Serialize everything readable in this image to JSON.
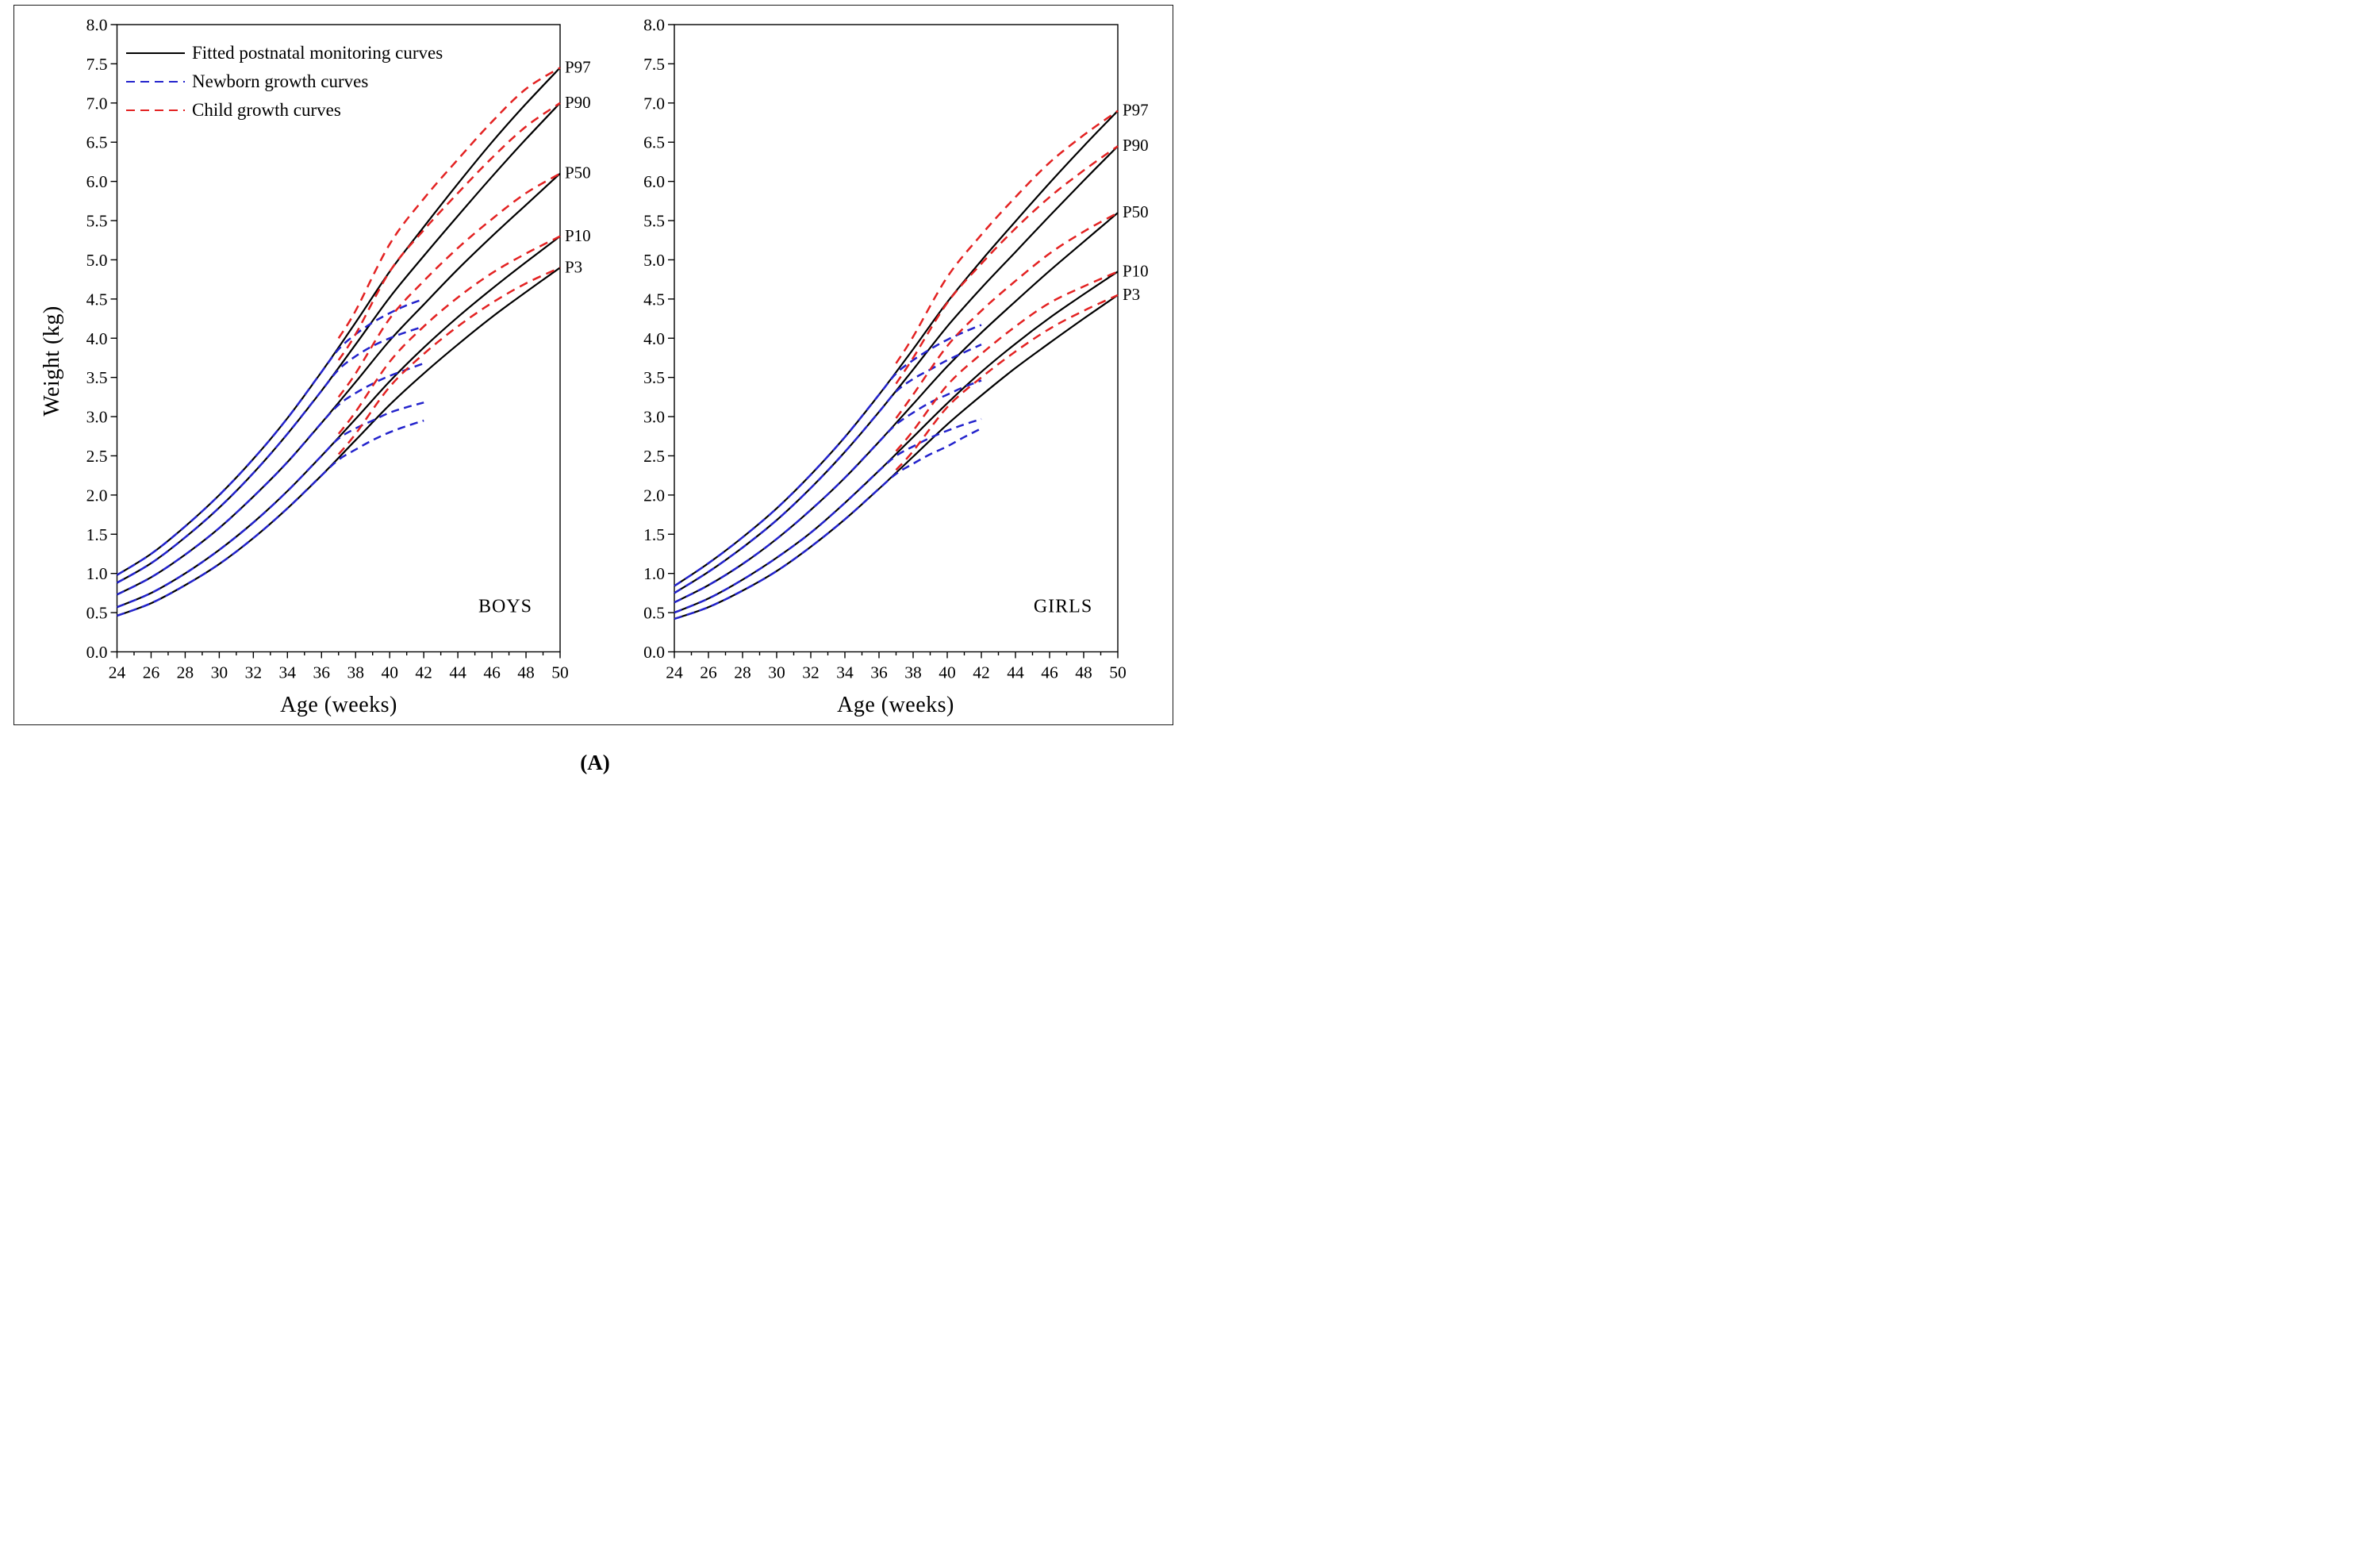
{
  "figure": {
    "caption": "(A)"
  },
  "legend": {
    "items": [
      {
        "label": "Fitted postnatal monitoring curves",
        "style": "solid",
        "color": "#000000"
      },
      {
        "label": "Newborn growth curves",
        "style": "dashed",
        "color": "#2323cc"
      },
      {
        "label": "Child growth curves",
        "style": "dashed",
        "color": "#e32222"
      }
    ]
  },
  "axes": {
    "x_label": "Age (weeks)",
    "y_label": "Weight (kg)",
    "x_range": [
      24,
      50
    ],
    "x_tick_step": 2,
    "x_minor_step": 1,
    "y_range": [
      0,
      8
    ],
    "y_tick_step": 0.5,
    "grid": "off",
    "legend_position": "top-left of first panel"
  },
  "chart_data": [
    {
      "type": "line",
      "title": "BOYS",
      "xlabel": "Age (weeks)",
      "ylabel": "Weight (kg)",
      "xlim": [
        24,
        50
      ],
      "ylim": [
        0,
        8
      ],
      "percentile_labels": [
        "P97",
        "P90",
        "P50",
        "P10",
        "P3"
      ],
      "series": [
        {
          "name": "Fitted postnatal monitoring curves",
          "color": "#000000",
          "style": "solid",
          "weeks": [
            24,
            26,
            28,
            30,
            32,
            34,
            36,
            38,
            40,
            42,
            44,
            46,
            48,
            50
          ],
          "P3": [
            0.46,
            0.62,
            0.85,
            1.12,
            1.45,
            1.83,
            2.25,
            2.7,
            3.15,
            3.55,
            3.92,
            4.27,
            4.59,
            4.9
          ],
          "P10": [
            0.57,
            0.75,
            1.0,
            1.3,
            1.65,
            2.05,
            2.5,
            2.97,
            3.45,
            3.88,
            4.27,
            4.63,
            4.97,
            5.3
          ],
          "P50": [
            0.73,
            0.95,
            1.24,
            1.58,
            1.98,
            2.42,
            2.92,
            3.44,
            3.97,
            4.43,
            4.88,
            5.3,
            5.7,
            6.1
          ],
          "P90": [
            0.88,
            1.13,
            1.46,
            1.84,
            2.28,
            2.78,
            3.33,
            3.92,
            4.52,
            5.05,
            5.56,
            6.06,
            6.54,
            7.0
          ],
          "P97": [
            0.98,
            1.25,
            1.6,
            2.0,
            2.46,
            2.98,
            3.57,
            4.2,
            4.85,
            5.42,
            5.97,
            6.5,
            6.99,
            7.45
          ]
        },
        {
          "name": "Newborn growth curves",
          "color": "#2323cc",
          "style": "dashed",
          "weeks": [
            24,
            26,
            28,
            30,
            32,
            34,
            36,
            37,
            38,
            39,
            40,
            41,
            42
          ],
          "P3": [
            0.46,
            0.62,
            0.85,
            1.12,
            1.45,
            1.83,
            2.25,
            2.45,
            2.58,
            2.7,
            2.8,
            2.88,
            2.95
          ],
          "P10": [
            0.57,
            0.75,
            1.0,
            1.3,
            1.65,
            2.05,
            2.5,
            2.72,
            2.85,
            2.95,
            3.05,
            3.12,
            3.18
          ],
          "P50": [
            0.73,
            0.95,
            1.24,
            1.58,
            1.98,
            2.42,
            2.92,
            3.15,
            3.3,
            3.42,
            3.52,
            3.6,
            3.68
          ],
          "P90": [
            0.88,
            1.13,
            1.46,
            1.84,
            2.28,
            2.78,
            3.33,
            3.6,
            3.77,
            3.9,
            4.0,
            4.08,
            4.15
          ],
          "P97": [
            0.98,
            1.25,
            1.6,
            2.0,
            2.46,
            2.98,
            3.57,
            3.86,
            4.05,
            4.2,
            4.32,
            4.42,
            4.5
          ]
        },
        {
          "name": "Child growth curves",
          "color": "#e32222",
          "style": "dashed",
          "weeks": [
            37,
            38,
            40,
            42,
            44,
            46,
            48,
            50
          ],
          "P3": [
            2.52,
            2.78,
            3.38,
            3.8,
            4.15,
            4.45,
            4.7,
            4.9
          ],
          "P10": [
            2.78,
            3.06,
            3.7,
            4.15,
            4.52,
            4.83,
            5.08,
            5.3
          ],
          "P50": [
            3.25,
            3.55,
            4.25,
            4.73,
            5.15,
            5.52,
            5.85,
            6.1
          ],
          "P90": [
            3.72,
            4.05,
            4.85,
            5.38,
            5.85,
            6.3,
            6.7,
            7.0
          ],
          "P97": [
            4.0,
            4.35,
            5.2,
            5.78,
            6.28,
            6.76,
            7.18,
            7.45
          ]
        }
      ]
    },
    {
      "type": "line",
      "title": "GIRLS",
      "xlabel": "Age (weeks)",
      "ylabel": "Weight (kg)",
      "xlim": [
        24,
        50
      ],
      "ylim": [
        0,
        8
      ],
      "percentile_labels": [
        "P97",
        "P90",
        "P50",
        "P10",
        "P3"
      ],
      "series": [
        {
          "name": "Fitted postnatal monitoring curves",
          "color": "#000000",
          "style": "solid",
          "weeks": [
            24,
            26,
            28,
            30,
            32,
            34,
            36,
            38,
            40,
            42,
            44,
            46,
            48,
            50
          ],
          "P3": [
            0.42,
            0.57,
            0.78,
            1.03,
            1.34,
            1.69,
            2.08,
            2.49,
            2.9,
            3.27,
            3.62,
            3.94,
            4.25,
            4.55
          ],
          "P10": [
            0.5,
            0.68,
            0.92,
            1.2,
            1.52,
            1.9,
            2.31,
            2.74,
            3.17,
            3.57,
            3.93,
            4.26,
            4.56,
            4.85
          ],
          "P50": [
            0.63,
            0.85,
            1.12,
            1.44,
            1.81,
            2.22,
            2.68,
            3.16,
            3.64,
            4.07,
            4.47,
            4.86,
            5.23,
            5.6
          ],
          "P90": [
            0.75,
            1.02,
            1.33,
            1.68,
            2.09,
            2.55,
            3.06,
            3.6,
            4.15,
            4.64,
            5.1,
            5.56,
            6.01,
            6.45
          ],
          "P97": [
            0.84,
            1.13,
            1.46,
            1.83,
            2.26,
            2.74,
            3.28,
            3.86,
            4.46,
            4.99,
            5.49,
            5.98,
            6.45,
            6.9
          ]
        },
        {
          "name": "Newborn growth curves",
          "color": "#2323cc",
          "style": "dashed",
          "weeks": [
            24,
            26,
            28,
            30,
            32,
            34,
            36,
            37,
            38,
            39,
            40,
            41,
            42
          ],
          "P3": [
            0.42,
            0.57,
            0.78,
            1.03,
            1.34,
            1.69,
            2.08,
            2.27,
            2.4,
            2.52,
            2.62,
            2.74,
            2.85
          ],
          "P10": [
            0.5,
            0.68,
            0.92,
            1.2,
            1.52,
            1.9,
            2.31,
            2.5,
            2.62,
            2.73,
            2.82,
            2.9,
            2.97
          ],
          "P50": [
            0.63,
            0.85,
            1.12,
            1.44,
            1.81,
            2.22,
            2.68,
            2.9,
            3.05,
            3.18,
            3.28,
            3.38,
            3.46
          ],
          "P90": [
            0.75,
            1.02,
            1.33,
            1.68,
            2.09,
            2.55,
            3.06,
            3.32,
            3.48,
            3.6,
            3.72,
            3.82,
            3.92
          ],
          "P97": [
            0.84,
            1.13,
            1.46,
            1.83,
            2.26,
            2.74,
            3.28,
            3.55,
            3.72,
            3.86,
            3.98,
            4.08,
            4.17
          ]
        },
        {
          "name": "Child growth curves",
          "color": "#e32222",
          "style": "dashed",
          "weeks": [
            37,
            38,
            40,
            42,
            44,
            46,
            48,
            50
          ],
          "P3": [
            2.32,
            2.56,
            3.12,
            3.5,
            3.83,
            4.12,
            4.35,
            4.55
          ],
          "P10": [
            2.56,
            2.82,
            3.4,
            3.8,
            4.15,
            4.45,
            4.66,
            4.85
          ],
          "P50": [
            2.98,
            3.28,
            3.9,
            4.35,
            4.73,
            5.08,
            5.36,
            5.6
          ],
          "P90": [
            3.42,
            3.75,
            4.45,
            4.95,
            5.4,
            5.8,
            6.14,
            6.45
          ],
          "P97": [
            3.68,
            4.02,
            4.78,
            5.32,
            5.8,
            6.24,
            6.59,
            6.9
          ]
        }
      ]
    }
  ]
}
